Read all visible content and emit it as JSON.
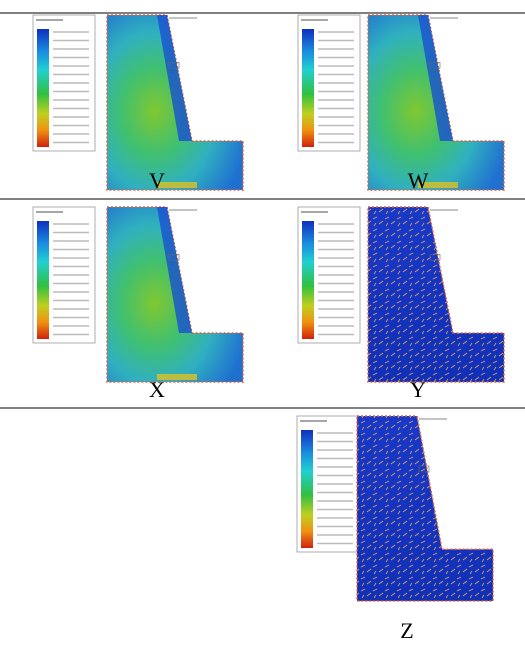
{
  "panels": [
    {
      "label": "V"
    },
    {
      "label": "W"
    },
    {
      "label": "X"
    },
    {
      "label": "Y"
    },
    {
      "label": "Z"
    }
  ]
}
